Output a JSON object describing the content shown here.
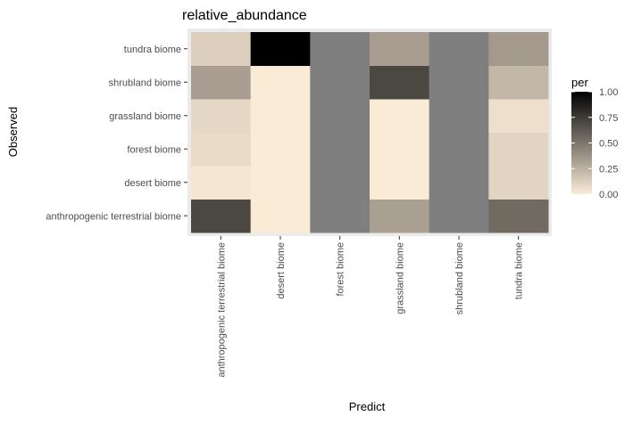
{
  "chart_data": {
    "type": "heatmap",
    "title": "relative_abundance",
    "xlabel": "Predict",
    "ylabel": "Observed",
    "x_categories": [
      "anthropogenic terrestrial biome",
      "desert biome",
      "forest biome",
      "grassland biome",
      "shrubland biome",
      "tundra biome"
    ],
    "y_categories": [
      "anthropogenic terrestrial biome",
      "desert biome",
      "forest biome",
      "grassland biome",
      "shrubland biome",
      "tundra biome"
    ],
    "values": [
      [
        0.7,
        0.0,
        null,
        0.32,
        null,
        0.55
      ],
      [
        0.02,
        0.0,
        null,
        0.0,
        null,
        0.1
      ],
      [
        0.07,
        0.0,
        null,
        0.0,
        null,
        0.1
      ],
      [
        0.08,
        0.0,
        null,
        0.0,
        null,
        0.05
      ],
      [
        0.33,
        0.0,
        null,
        0.7,
        null,
        0.22
      ],
      [
        0.12,
        1.0,
        null,
        0.33,
        null,
        0.35
      ]
    ],
    "na_color": "#7f7f7f",
    "legend": {
      "title": "per",
      "position": "right",
      "ticks": [
        1.0,
        0.75,
        0.5,
        0.25,
        0.0
      ],
      "tick_labels": [
        "1.00",
        "0.75",
        "0.50",
        "0.25",
        "0.00"
      ],
      "low_color": "#faebd7",
      "high_color": "#000000"
    },
    "grid": true,
    "panel_background": "#ebebeb"
  }
}
